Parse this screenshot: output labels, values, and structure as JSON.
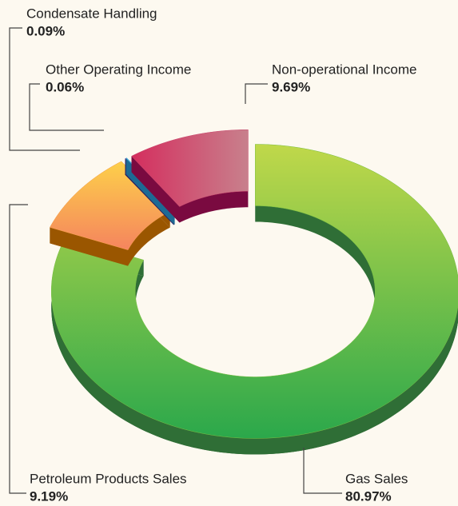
{
  "chart_data": {
    "type": "pie",
    "categories": [
      "Gas Sales",
      "Petroleum Products Sales",
      "Condensate Handling",
      "Other Operating Income",
      "Non-operational Income"
    ],
    "values": [
      80.97,
      9.19,
      0.09,
      0.06,
      9.69
    ],
    "value_labels": [
      "80.97%",
      "9.19%",
      "0.09%",
      "0.06%",
      "9.69%"
    ],
    "colors": [
      "#7cc144",
      "#f9a34e",
      "#5b3d9e",
      "#3aa6d8",
      "#cc4e72"
    ]
  }
}
